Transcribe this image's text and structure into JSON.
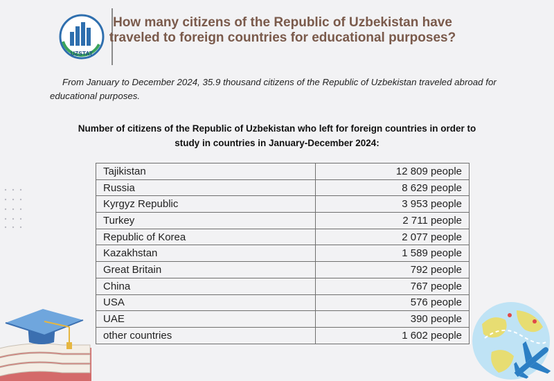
{
  "logo": {
    "text": "UZSTAT",
    "icon": "uzstat-logo"
  },
  "title": "How many citizens of the Republic of Uzbekistan have traveled to foreign countries for educational purposes?",
  "intro": "From January to December 2024, 35.9 thousand citizens of the Republic of Uzbekistan traveled abroad for educational purposes.",
  "subtitle": "Number of citizens of the Republic of Uzbekistan who left for foreign countries in order to study in countries in January-December 2024:",
  "table": {
    "rows": [
      {
        "country": "Tajikistan",
        "value": "12 809 people"
      },
      {
        "country": "Russia",
        "value": "8 629 people"
      },
      {
        "country": "Kyrgyz Republic",
        "value": "3 953 people"
      },
      {
        "country": "Turkey",
        "value": "2 711 people"
      },
      {
        "country": "Republic of Korea",
        "value": "2 077 people"
      },
      {
        "country": "Kazakhstan",
        "value": "1 589 people"
      },
      {
        "country": "Great Britain",
        "value": "792 people"
      },
      {
        "country": "China",
        "value": "767 people"
      },
      {
        "country": "USA",
        "value": "576 people"
      },
      {
        "country": "UAE",
        "value": "390  people"
      },
      {
        "country": "other countries",
        "value": "1 602 people"
      }
    ]
  },
  "colors": {
    "title": "#7a5a4b",
    "background": "#f2f2f4",
    "logo_blue": "#2f6fae",
    "logo_green": "#3aa35a",
    "globe_water": "#bfe3f5",
    "globe_land": "#e7dd72",
    "plane": "#2c7fc4"
  },
  "decorations": {
    "left_bottom": "graduation-cap-on-books-icon",
    "right_bottom": "globe-with-airplane-icon",
    "left_mid": "dot-grid-icon"
  }
}
